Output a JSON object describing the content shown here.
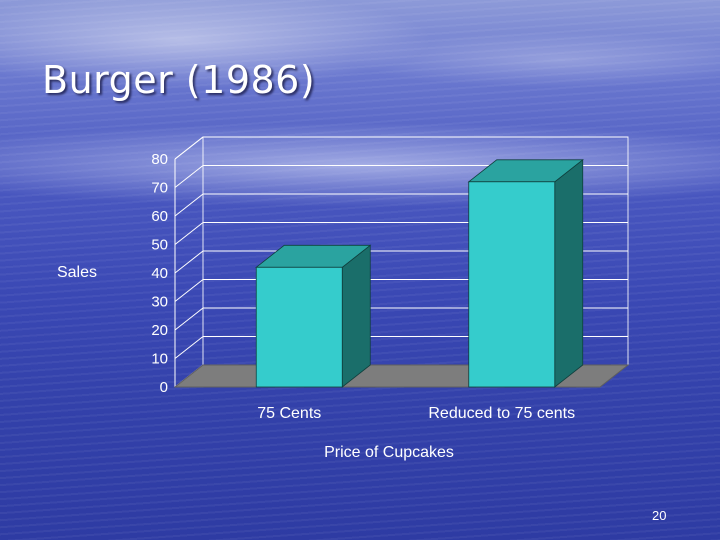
{
  "slide": {
    "title": "Burger (1986)",
    "page_number": "20"
  },
  "chart_data": {
    "type": "bar",
    "style": "3d-column",
    "title": "",
    "xlabel": "Price of Cupcakes",
    "ylabel": "Sales",
    "categories": [
      "75 Cents",
      "Reduced to 75 cents"
    ],
    "values": [
      42,
      72
    ],
    "ylim": [
      0,
      80
    ],
    "yticks": [
      0,
      10,
      20,
      30,
      40,
      50,
      60,
      70,
      80
    ],
    "grid": true,
    "legend": "none",
    "colors": {
      "bar_front": "#35cccc",
      "bar_side": "#1a6e6a",
      "bar_top": "#2aa3a0",
      "floor": "#7d7d7d",
      "grid": "#ffffff"
    }
  }
}
